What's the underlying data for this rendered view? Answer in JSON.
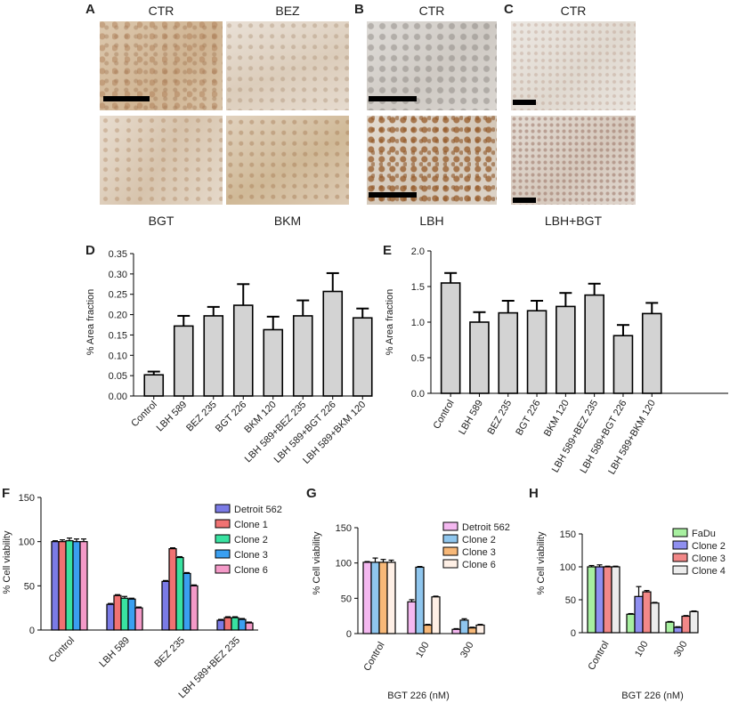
{
  "panel_letters": {
    "a": "A",
    "b": "B",
    "c": "C",
    "d": "D",
    "e": "E",
    "f": "F",
    "g": "G",
    "h": "H"
  },
  "micrographs": {
    "a_ctr": "CTR",
    "a_bez": "BEZ",
    "a_bgt": "BGT",
    "a_bkm": "BKM",
    "b_ctr": "CTR",
    "b_lbh": "LBH",
    "c_ctr": "CTR",
    "c_lbhbgt": "LBH+BGT"
  },
  "chart_data": [
    {
      "id": "D",
      "type": "bar",
      "categories": [
        "Control",
        "LBH 589",
        "BEZ 235",
        "BGT 226",
        "BKM 120",
        "LBH 589+BEZ 235",
        "LBH 589+BGT 226",
        "LBH 589+BKM 120"
      ],
      "values": [
        0.052,
        0.172,
        0.197,
        0.223,
        0.163,
        0.197,
        0.257,
        0.192
      ],
      "errors": [
        0.008,
        0.025,
        0.022,
        0.052,
        0.032,
        0.038,
        0.045,
        0.023
      ],
      "ylabel": "% Area fraction",
      "ylim": [
        0,
        0.35
      ],
      "yticks": [
        "0.00",
        "0.05",
        "0.10",
        "0.15",
        "0.20",
        "0.25",
        "0.30",
        "0.35"
      ],
      "color": "#d3d3d3"
    },
    {
      "id": "E",
      "type": "bar",
      "categories": [
        "Control",
        "LBH 589",
        "BEZ 235",
        "BGT 226",
        "BKM 120",
        "LBH 589+BEZ 235",
        "LBH 589+BGT 226",
        "LBH 589+BKM 120"
      ],
      "values": [
        1.55,
        1.0,
        1.13,
        1.16,
        1.22,
        1.38,
        0.81,
        1.12
      ],
      "errors": [
        0.14,
        0.14,
        0.17,
        0.14,
        0.19,
        0.16,
        0.15,
        0.15
      ],
      "ylabel": "% Area fraction",
      "ylim": [
        0,
        2.0
      ],
      "yticks": [
        "0.0",
        "0.5",
        "1.0",
        "1.5",
        "2.0"
      ],
      "color": "#d3d3d3"
    },
    {
      "id": "F",
      "type": "bar",
      "categories": [
        "Control",
        "LBH 589",
        "BEZ 235",
        "LBH 589+BEZ 235"
      ],
      "series": [
        {
          "name": "Detroit 562",
          "color": "#7b7be6",
          "values": [
            100,
            29,
            55,
            11
          ],
          "errors": [
            1,
            1,
            1,
            1
          ]
        },
        {
          "name": "Clone 1",
          "color": "#f07272",
          "values": [
            100,
            39,
            92,
            14
          ],
          "errors": [
            2,
            1,
            1,
            1
          ]
        },
        {
          "name": "Clone 2",
          "color": "#39e2a1",
          "values": [
            101,
            36,
            82,
            14
          ],
          "errors": [
            3,
            2,
            1,
            1
          ]
        },
        {
          "name": "Clone 3",
          "color": "#3a9ff0",
          "values": [
            100,
            35,
            64,
            12
          ],
          "errors": [
            3,
            1,
            1,
            1
          ]
        },
        {
          "name": "Clone 6",
          "color": "#f49ac8",
          "values": [
            100,
            25,
            50,
            8
          ],
          "errors": [
            3,
            1,
            1,
            1
          ]
        }
      ],
      "ylabel": "% Cell viability",
      "ylim": [
        0,
        150
      ],
      "yticks": [
        "0",
        "50",
        "100",
        "150"
      ]
    },
    {
      "id": "G",
      "type": "bar",
      "categories": [
        "Control",
        "100",
        "300"
      ],
      "series": [
        {
          "name": "Detroit 562",
          "color": "#f4b8f0",
          "values": [
            101,
            45,
            6
          ],
          "errors": [
            1,
            3,
            1
          ]
        },
        {
          "name": "Clone 2",
          "color": "#8fc6ee",
          "values": [
            101,
            94,
            19
          ],
          "errors": [
            6,
            1,
            2
          ]
        },
        {
          "name": "Clone 3",
          "color": "#f7b878",
          "values": [
            101,
            12,
            8
          ],
          "errors": [
            4,
            1,
            1
          ]
        },
        {
          "name": "Clone 6",
          "color": "#fff0e6",
          "values": [
            101,
            52,
            12
          ],
          "errors": [
            3,
            1,
            1
          ]
        }
      ],
      "xlabel": "BGT 226 (nM)",
      "ylabel": "% Cell viability",
      "ylim": [
        0,
        150
      ],
      "yticks": [
        "0",
        "50",
        "100",
        "150"
      ]
    },
    {
      "id": "H",
      "type": "bar",
      "categories": [
        "Control",
        "100",
        "300"
      ],
      "series": [
        {
          "name": "FaDu",
          "color": "#a8f0a0",
          "values": [
            100,
            28,
            16
          ],
          "errors": [
            2,
            1,
            1
          ]
        },
        {
          "name": "Clone 2",
          "color": "#8f8ff0",
          "values": [
            100,
            55,
            8
          ],
          "errors": [
            3,
            15,
            1
          ]
        },
        {
          "name": "Clone 3",
          "color": "#f28888",
          "values": [
            100,
            62,
            25
          ],
          "errors": [
            1,
            2,
            1
          ]
        },
        {
          "name": "Clone 4",
          "color": "#ececec",
          "values": [
            100,
            45,
            32
          ],
          "errors": [
            1,
            1,
            1
          ]
        }
      ],
      "xlabel": "BGT 226 (nM)",
      "ylabel": "% Cell viability",
      "ylim": [
        0,
        150
      ],
      "yticks": [
        "0",
        "50",
        "100",
        "150"
      ]
    }
  ]
}
